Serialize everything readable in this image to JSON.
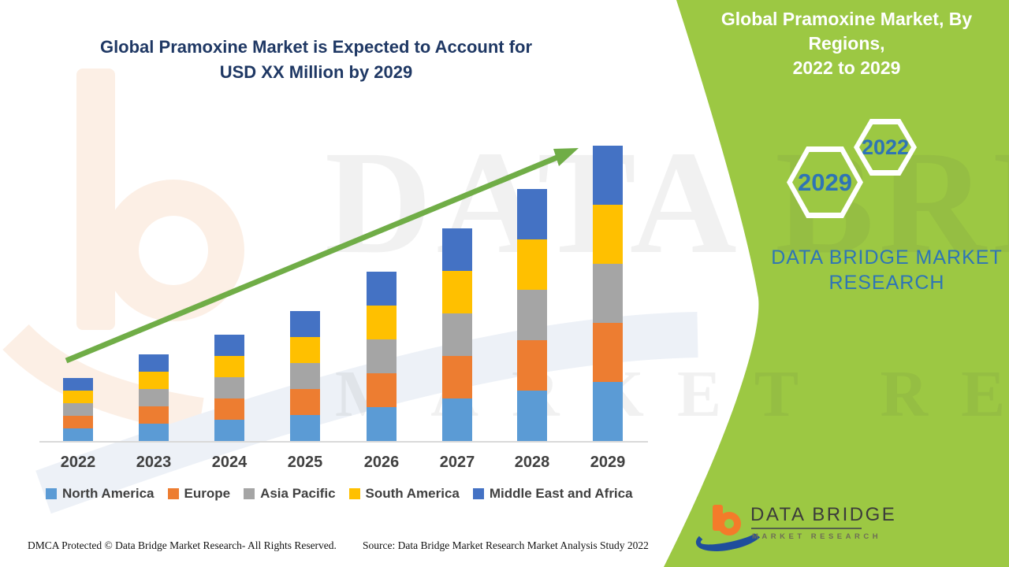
{
  "title": {
    "line1": "Global Pramoxine Market is Expected to Account for",
    "line2": "USD XX Million by 2029"
  },
  "banner": {
    "line1": "Global Pramoxine Market, By Regions,",
    "line2": "2022 to 2029"
  },
  "hexagons": {
    "start_year": "2022",
    "end_year": "2029"
  },
  "brand_panel": {
    "line1": "DATA BRIDGE MARKET",
    "line2": "RESEARCH"
  },
  "watermark": {
    "row1": "DATA BRIDGE",
    "row2": "MARKET RESEARCH"
  },
  "logo": {
    "title": "DATA BRIDGE",
    "subtitle": "MARKET RESEARCH",
    "b_icon": "data-bridge-b-icon"
  },
  "footer": {
    "dmca": "DMCA Protected © Data Bridge Market Research- All Rights Reserved.",
    "source": "Source: Data Bridge Market Research Market Analysis Study 2022"
  },
  "colors": {
    "green_panel": "#9CC843",
    "arrow_green": "#70AD47",
    "title_navy": "#1F3864",
    "hex_year_blue": "#2E74B5",
    "brand_blue": "#2E75B6",
    "axis_line": "#D9D9D9",
    "tick_text": "#404040"
  },
  "chart_data": {
    "type": "bar",
    "stacked": true,
    "title": "Global Pramoxine Market is Expected to Account for USD XX Million by 2029",
    "xlabel": "",
    "ylabel": "",
    "value_axis_visible": false,
    "units": "USD Million (values masked as XX)",
    "grid": false,
    "legend_position": "bottom",
    "trend_arrow": true,
    "categories": [
      "2022",
      "2023",
      "2024",
      "2025",
      "2026",
      "2027",
      "2028",
      "2029"
    ],
    "series": [
      {
        "name": "North America",
        "color": "#5B9BD5",
        "values": [
          16,
          22,
          27,
          33,
          43,
          54,
          64,
          75
        ]
      },
      {
        "name": "Europe",
        "color": "#ED7D31",
        "values": [
          16,
          22,
          27,
          33,
          43,
          54,
          64,
          75
        ]
      },
      {
        "name": "Asia Pacific",
        "color": "#A5A5A5",
        "values": [
          16,
          22,
          27,
          33,
          43,
          54,
          64,
          75
        ]
      },
      {
        "name": "South America",
        "color": "#FFC000",
        "values": [
          16,
          22,
          27,
          33,
          43,
          54,
          64,
          75
        ]
      },
      {
        "name": "Middle East and Africa",
        "color": "#4472C4",
        "values": [
          16,
          22,
          27,
          33,
          43,
          54,
          64,
          75
        ]
      }
    ],
    "stack_totals": [
      80,
      110,
      135,
      165,
      215,
      270,
      320,
      375
    ]
  }
}
